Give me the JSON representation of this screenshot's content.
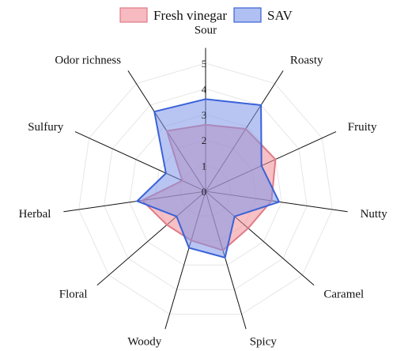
{
  "chart_data": {
    "type": "radar",
    "axes": [
      "Sour",
      "Roasty",
      "Fruity",
      "Nutty",
      "Caramel",
      "Spicy",
      "Woody",
      "Floral",
      "Herbal",
      "Sulfury",
      "Odor richness"
    ],
    "rlim": [
      0,
      5
    ],
    "ticks": [
      "0",
      "1",
      "2",
      "3",
      "4",
      "5"
    ],
    "legend_position": "top",
    "grid": true,
    "series": [
      {
        "name": "Fresh vinegar",
        "values": [
          2.6,
          2.9,
          3.0,
          2.6,
          2.2,
          2.4,
          2.0,
          2.0,
          2.5,
          1.0,
          2.8
        ],
        "fill": "#f08c96",
        "stroke": "#e07a86"
      },
      {
        "name": "SAV",
        "values": [
          3.6,
          4.0,
          2.4,
          2.9,
          1.5,
          2.7,
          2.3,
          1.5,
          2.7,
          1.7,
          3.7
        ],
        "fill": "#7d96ea",
        "stroke": "#3a62d8"
      }
    ]
  }
}
